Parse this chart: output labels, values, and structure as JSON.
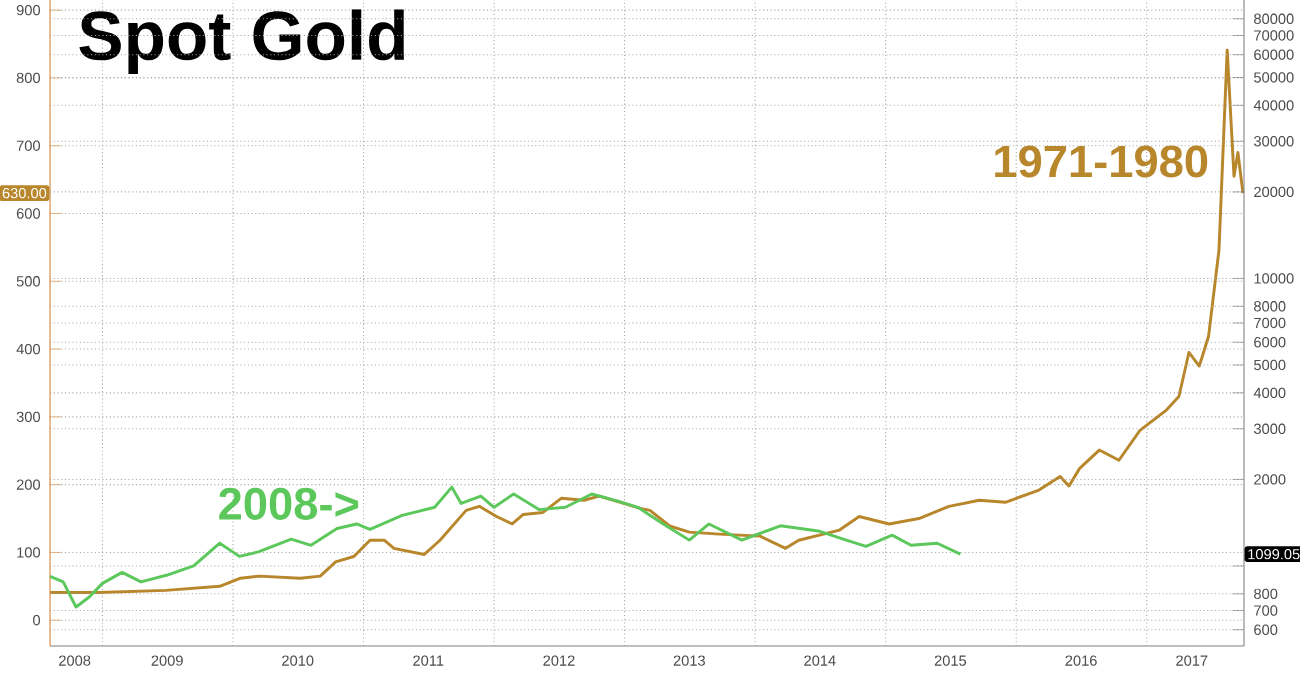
{
  "chart_data": {
    "type": "line",
    "title": "Spot Gold",
    "xlim": [
      "2008-08-07",
      "2017-09-30"
    ],
    "xticks": [
      {
        "value": "2008-10-15",
        "label": "2008"
      },
      {
        "value": "2009-07-01",
        "label": "2009"
      },
      {
        "value": "2010-07-01",
        "label": "2010"
      },
      {
        "value": "2011-07-01",
        "label": "2011"
      },
      {
        "value": "2012-07-01",
        "label": "2012"
      },
      {
        "value": "2013-07-01",
        "label": "2013"
      },
      {
        "value": "2014-07-01",
        "label": "2014"
      },
      {
        "value": "2015-07-01",
        "label": "2015"
      },
      {
        "value": "2016-07-01",
        "label": "2016"
      },
      {
        "value": "2017-05-07",
        "label": "2017"
      },
      {
        "value": "2009-01-01",
        "label": null
      },
      {
        "value": "2010-01-01",
        "label": null
      },
      {
        "value": "2011-01-01",
        "label": null
      },
      {
        "value": "2012-01-01",
        "label": null
      },
      {
        "value": "2013-01-01",
        "label": null
      },
      {
        "value": "2014-01-01",
        "label": null
      },
      {
        "value": "2015-01-01",
        "label": null
      },
      {
        "value": "2016-01-01",
        "label": null
      },
      {
        "value": "2017-01-01",
        "label": null
      }
    ],
    "ylim": [
      -38,
      915
    ],
    "yticks": [
      0,
      100,
      200,
      300,
      400,
      500,
      600,
      700,
      800,
      900
    ],
    "y2lim": [
      527,
      93000
    ],
    "y2ticks": [
      600,
      700,
      800,
      {
        "value": 1000,
        "label": null
      },
      2000,
      3000,
      4000,
      5000,
      6000,
      7000,
      8000,
      10000,
      20000,
      30000,
      40000,
      50000,
      60000,
      70000,
      80000
    ],
    "log": "y2",
    "grid": true,
    "series": [
      {
        "name": "1971-1980",
        "color": "#b8862b",
        "axis": "y",
        "x": [
          "2008-08-07",
          "2008-12-23",
          "2009-06-27",
          "2009-11-25",
          "2010-01-22",
          "2010-03-16",
          "2010-07-08",
          "2010-09-02",
          "2010-10-15",
          "2010-12-05",
          "2011-01-19",
          "2011-02-28",
          "2011-03-27",
          "2011-06-20",
          "2011-08-03",
          "2011-10-15",
          "2011-11-21",
          "2012-01-08",
          "2012-02-21",
          "2012-03-23",
          "2012-05-17",
          "2012-07-08",
          "2012-09-09",
          "2012-10-22",
          "2012-12-20",
          "2013-02-14",
          "2013-03-13",
          "2013-05-07",
          "2013-07-01",
          "2013-09-23",
          "2014-01-15",
          "2014-03-27",
          "2014-05-03",
          "2014-08-25",
          "2014-10-19",
          "2015-01-11",
          "2015-04-04",
          "2015-06-27",
          "2015-09-20",
          "2015-12-02",
          "2016-03-05",
          "2016-05-03",
          "2016-05-28",
          "2016-06-27",
          "2016-08-21",
          "2016-10-15",
          "2016-12-13",
          "2017-02-25",
          "2017-04-01",
          "2017-04-29",
          "2017-05-28",
          "2017-06-23",
          "2017-07-22",
          "2017-08-14",
          "2017-09-02",
          "2017-09-13",
          "2017-09-27"
        ],
        "values": [
          41,
          41,
          44,
          50,
          62,
          65,
          62,
          65,
          86,
          94,
          118,
          118,
          106,
          97,
          118,
          162,
          168,
          153,
          142,
          156,
          159,
          180,
          177,
          183,
          174,
          165,
          162,
          139,
          130,
          127,
          124,
          106,
          118,
          133,
          153,
          142,
          150,
          168,
          177,
          174,
          192,
          212,
          198,
          224,
          251,
          236,
          280,
          310,
          330,
          395,
          375,
          419,
          546,
          841,
          655,
          690,
          630
        ]
      },
      {
        "name": "2008->",
        "color": "#5cc85c",
        "axis": "y2",
        "x": [
          "2008-08-07",
          "2008-09-13",
          "2008-10-19",
          "2008-11-25",
          "2009-01-01",
          "2009-02-25",
          "2009-04-19",
          "2009-07-01",
          "2009-09-13",
          "2009-11-25",
          "2010-01-19",
          "2010-03-13",
          "2010-06-13",
          "2010-08-07",
          "2010-10-19",
          "2010-12-13",
          "2011-01-19",
          "2011-04-19",
          "2011-07-19",
          "2011-09-05",
          "2011-10-01",
          "2011-11-25",
          "2012-01-01",
          "2012-02-25",
          "2012-05-07",
          "2012-07-19",
          "2012-10-01",
          "2012-12-13",
          "2013-02-07",
          "2013-04-19",
          "2013-07-01",
          "2013-08-25",
          "2013-11-25",
          "2014-03-13",
          "2014-07-01",
          "2014-09-13",
          "2014-11-07",
          "2015-01-19",
          "2015-03-13",
          "2015-05-25",
          "2015-07-29"
        ],
        "values": [
          920,
          880,
          720,
          780,
          870,
          950,
          880,
          930,
          1000,
          1200,
          1080,
          1120,
          1240,
          1180,
          1350,
          1400,
          1340,
          1500,
          1600,
          1880,
          1650,
          1750,
          1600,
          1780,
          1570,
          1600,
          1780,
          1680,
          1600,
          1400,
          1230,
          1400,
          1230,
          1380,
          1320,
          1230,
          1170,
          1280,
          1180,
          1200,
          1099.05
        ]
      }
    ],
    "annotations": [
      "630.00",
      "1099.05"
    ]
  }
}
